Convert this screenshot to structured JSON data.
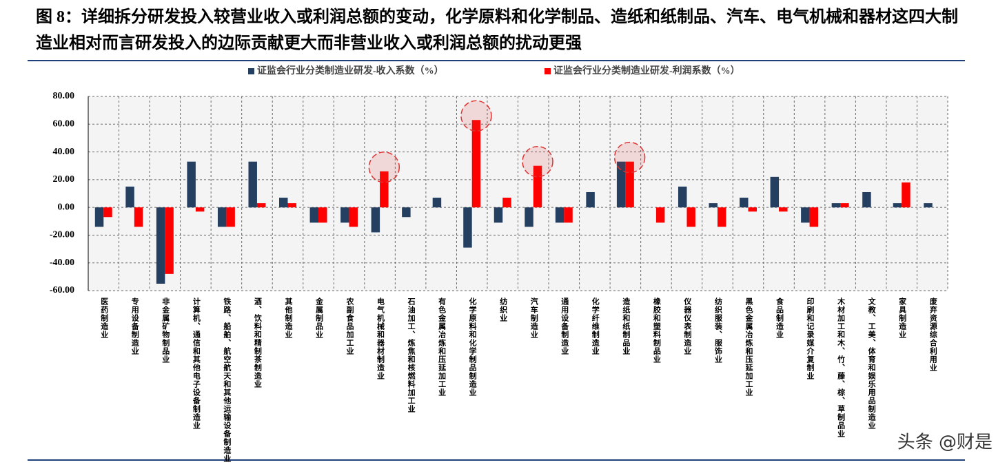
{
  "chart_data": {
    "type": "bar",
    "title": "图 8：详细拆分研发投入较营业收入或利润总额的变动，化学原料和化学制品、造纸和纸制品、汽车、电气机械和器材这四大制造业相对而言研发投入的边际贡献更大而非营业收入或利润总额的扰动更强",
    "categories": [
      "医药制造业",
      "专用设备制造业",
      "非金属矿物制品业",
      "计算机、通信和其他电子设备制造业",
      "铁路、船舶、航空航天和其他运输设备制造业",
      "酒、饮料和精制茶制造业",
      "其他制造业",
      "金属制品业",
      "农副食品加工业",
      "电气机械和器材制造业",
      "石油加工、炼焦和核燃料加工业",
      "有色金属冶炼和压延加工业",
      "化学原料和化学制品制造业",
      "纺织业",
      "汽车制造业",
      "通用设备制造业",
      "化学纤维制造业",
      "造纸和纸制品业",
      "橡胶和塑料制品业",
      "仪器仪表制造业",
      "纺织服装、服饰业",
      "黑色金属冶炼和压延加工业",
      "食品制造业",
      "印刷和记录媒介复制业",
      "木材加工和木、竹、藤、棕、草制品业",
      "文教、工美、体育和娱乐用品制造业",
      "家具制造业",
      "废弃资源综合利用业"
    ],
    "series": [
      {
        "name": "证监会行业分类制造业研发-收入系数（%）",
        "color": "#243f60",
        "values": [
          -14,
          15,
          -55,
          33,
          -14,
          33,
          7,
          -11,
          -11,
          -18,
          -7,
          7,
          -29,
          -11,
          -14,
          -11,
          11,
          33,
          0,
          15,
          3,
          7,
          22,
          -11,
          3,
          11,
          3,
          3
        ]
      },
      {
        "name": "证监会行业分类制造业研发-利润系数（%）",
        "color": "#ff0000",
        "values": [
          -7,
          -14,
          -48,
          -3,
          -14,
          3,
          3,
          -11,
          -14,
          26,
          0,
          0,
          63,
          7,
          30,
          -11,
          0,
          33,
          -11,
          -14,
          -14,
          -3,
          -3,
          -14,
          3,
          0,
          18,
          0
        ]
      }
    ],
    "ylim": [
      -60,
      80
    ],
    "yticks": [
      {
        "value": -60,
        "label": "-60.00"
      },
      {
        "value": -40,
        "label": "-40.00"
      },
      {
        "value": -20,
        "label": "-20.00"
      },
      {
        "value": 0,
        "label": "0.00"
      },
      {
        "value": 20,
        "label": "20.00"
      },
      {
        "value": 40,
        "label": "40.00"
      },
      {
        "value": 60,
        "label": "60.00"
      },
      {
        "value": 80,
        "label": "80.00"
      }
    ],
    "grid": true,
    "watermark": "头条 @财是"
  }
}
